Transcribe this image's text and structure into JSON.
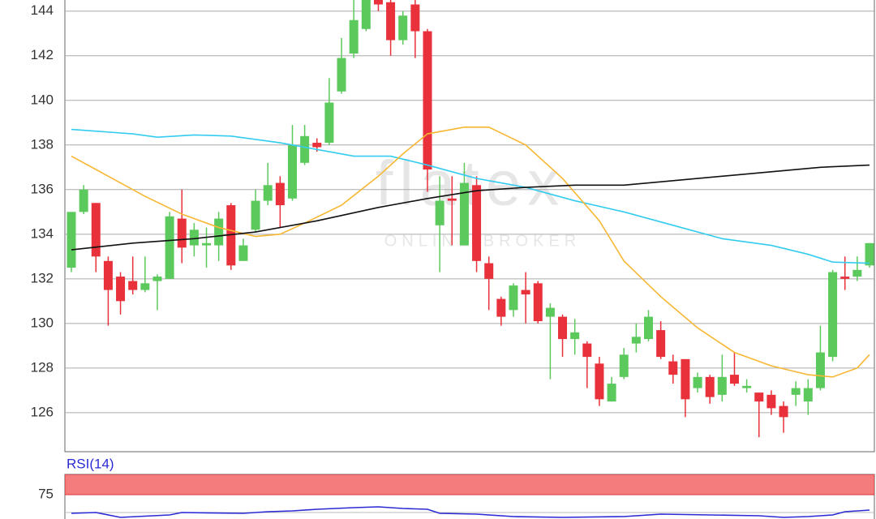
{
  "chart_data": {
    "type": "candlestick",
    "watermark": "flatex",
    "watermark_sub": "ONLINE BROKER",
    "open": [
      132.5,
      135,
      135.4,
      132.8,
      132.1,
      131.9,
      131.5,
      131.9,
      132,
      134.7,
      133.5,
      133.5,
      133.5,
      135.3,
      132.8,
      134.2,
      135.5,
      136.3,
      135.6,
      137.2,
      138.1,
      138.1,
      140.4,
      142.1,
      143.2,
      144.5,
      144.4,
      142.7,
      144.3,
      143.1,
      134.4,
      135.6,
      133.5,
      136.2,
      132.7,
      131.1,
      130.6,
      131.5,
      131.8,
      130.3,
      130.3,
      129.3,
      129.1,
      128.2,
      126.5,
      127.6,
      129.1,
      129.3,
      129.7,
      128.3,
      128.4,
      127.1,
      127.6,
      126.8,
      127.7,
      127.1,
      126.9,
      126.8,
      126.3,
      126.8,
      126.5,
      127.1,
      128.5,
      132.1,
      132.1,
      132.6
    ],
    "high": [
      135,
      136.2,
      135.4,
      133,
      132.3,
      133,
      133,
      132.2,
      135,
      136,
      134.5,
      134.3,
      135,
      135.4,
      133.8,
      136,
      137.2,
      136.6,
      138.9,
      138.9,
      138.3,
      141,
      142.8,
      144.5,
      144.5,
      144.5,
      144.5,
      144,
      144.5,
      143.2,
      136.6,
      136.6,
      137.2,
      136.6,
      133,
      131.2,
      131.8,
      132.3,
      131.9,
      130.9,
      130.4,
      130.2,
      129.2,
      128.5,
      127.6,
      128.9,
      130,
      130.6,
      130.1,
      128.6,
      128.4,
      127.8,
      127.7,
      128.6,
      128.7,
      127.5,
      126.9,
      127,
      126.5,
      127.4,
      127.5,
      129.9,
      132.4,
      133,
      133,
      133.6
    ],
    "low": [
      132.3,
      134.9,
      132.3,
      129.9,
      130.4,
      131.3,
      131.4,
      130.6,
      132,
      132.7,
      133,
      132.5,
      132.8,
      132.4,
      132.8,
      134.1,
      135.3,
      134.3,
      135.5,
      137.1,
      137.7,
      138,
      140.3,
      141.9,
      143.1,
      144,
      142,
      142.5,
      141.9,
      135.9,
      132.3,
      133.5,
      133.5,
      132.3,
      130.6,
      129.9,
      130.3,
      130,
      130,
      127.5,
      128.5,
      128.6,
      127.1,
      126.3,
      126.5,
      127.5,
      128.7,
      129.2,
      128.4,
      127.3,
      125.8,
      126.9,
      126.4,
      126.5,
      127.2,
      126.9,
      124.9,
      125.9,
      125.1,
      126.3,
      125.9,
      127,
      128.3,
      131.5,
      131.9,
      132.5
    ],
    "close": [
      135,
      136,
      133,
      131.5,
      131,
      131.5,
      131.8,
      132.1,
      134.8,
      133.4,
      134.2,
      133.6,
      134.7,
      132.6,
      133.5,
      135.5,
      136.2,
      135.3,
      138,
      138.4,
      137.9,
      139.9,
      141.9,
      143.6,
      144.5,
      144.3,
      142.7,
      143.8,
      143.1,
      136.9,
      135.5,
      135.5,
      136.3,
      132.8,
      132,
      130.3,
      131.7,
      131.3,
      130.1,
      130.7,
      129.3,
      129.6,
      128.5,
      126.6,
      127.3,
      128.6,
      129.4,
      130.3,
      128.5,
      127.7,
      126.6,
      127.6,
      126.7,
      127.6,
      127.3,
      127.2,
      126.5,
      126.2,
      125.8,
      127.1,
      127.1,
      128.7,
      132.3,
      132,
      132.4,
      133.6
    ],
    "up_color": "#5cc95c",
    "down_color": "#e8313a",
    "lines": [
      {
        "color": "#33ccf0",
        "x": [
          0,
          5,
          7,
          10,
          13,
          17,
          20,
          23,
          26,
          29,
          33,
          37,
          41,
          45,
          49,
          53,
          57,
          60,
          62,
          65
        ],
        "values": [
          138.7,
          138.5,
          138.35,
          138.45,
          138.4,
          138.1,
          137.8,
          137.5,
          137.5,
          137.1,
          136.5,
          136.1,
          135.5,
          135,
          134.4,
          133.8,
          133.5,
          133.1,
          132.75,
          132.7
        ]
      },
      {
        "color": "#f7b733",
        "x": [
          0,
          3,
          6,
          9,
          12,
          15,
          17,
          19,
          22,
          25,
          27,
          29,
          32,
          34,
          37,
          40,
          43,
          45,
          48,
          51,
          54,
          57,
          60,
          62,
          64,
          65
        ],
        "values": [
          137.5,
          136.6,
          135.7,
          134.9,
          134.3,
          133.9,
          134,
          134.5,
          135.3,
          136.6,
          137.6,
          138.5,
          138.8,
          138.8,
          138,
          136.5,
          134.6,
          132.8,
          131.2,
          129.8,
          128.7,
          128.1,
          127.7,
          127.6,
          128,
          128.6
        ]
      },
      {
        "color": "#111111",
        "x": [
          0,
          5,
          10,
          15,
          20,
          25,
          29,
          33,
          37,
          41,
          45,
          49,
          53,
          57,
          61,
          65
        ],
        "values": [
          133.3,
          133.6,
          133.8,
          134.1,
          134.6,
          135.2,
          135.6,
          135.95,
          136.1,
          136.2,
          136.2,
          136.4,
          136.6,
          136.8,
          137,
          137.1
        ]
      }
    ],
    "ylim": [
      124.25,
      144.5
    ],
    "yticks": [
      126,
      128,
      130,
      132,
      134,
      136,
      138,
      140,
      142,
      144
    ],
    "grid": true,
    "rsi": {
      "label": "RSI(14)",
      "color": "#2b2bd6",
      "band": [
        75,
        100
      ],
      "band_color": "#f47c7c",
      "ylim": [
        45,
        100
      ],
      "yticks": [
        75
      ],
      "x": [
        0,
        2,
        4,
        8,
        9,
        14,
        16,
        18,
        20,
        23,
        25,
        27,
        29,
        30,
        33,
        36,
        40,
        45,
        48,
        52,
        56,
        58,
        60,
        62,
        63,
        65
      ],
      "values": [
        52,
        53,
        47,
        50,
        53,
        52,
        54,
        55,
        57,
        59,
        60,
        58,
        57,
        52,
        51,
        48,
        47,
        48,
        51,
        50,
        49,
        47,
        48,
        50,
        54,
        56
      ]
    }
  }
}
